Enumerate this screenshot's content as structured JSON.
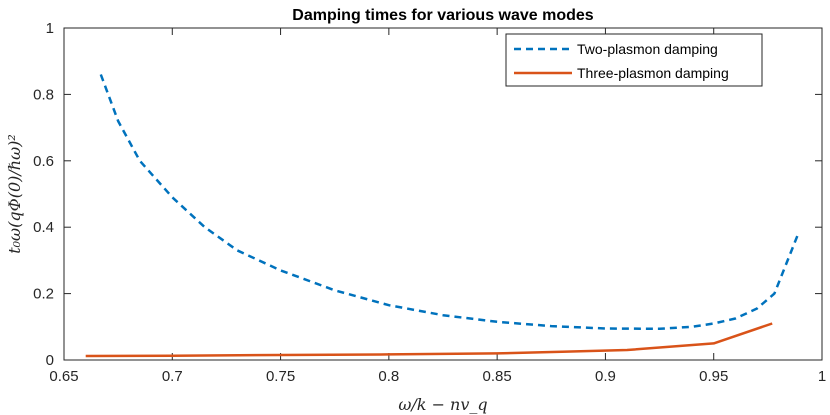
{
  "chart_data": {
    "type": "line",
    "title": "Damping times for various wave modes",
    "xlabel": "ω/k − nv_q",
    "ylabel": "t₀ω(qΦ(0)/ℏω)²",
    "xlim": [
      0.65,
      1
    ],
    "ylim": [
      0,
      1
    ],
    "xticks": [
      0.65,
      0.7,
      0.75,
      0.8,
      0.85,
      0.9,
      0.95,
      1
    ],
    "xtick_labels": [
      "0.65",
      "0.7",
      "0.75",
      "0.8",
      "0.85",
      "0.9",
      "0.95",
      "1"
    ],
    "yticks": [
      0,
      0.2,
      0.4,
      0.6,
      0.8,
      1
    ],
    "ytick_labels": [
      "0",
      "0.2",
      "0.4",
      "0.6",
      "0.8",
      "1"
    ],
    "legend_position": "top-right",
    "series": [
      {
        "name": "Two-plasmon damping",
        "style": "dashed",
        "color": "#0072BD",
        "x": [
          0.667,
          0.675,
          0.685,
          0.7,
          0.715,
          0.73,
          0.75,
          0.775,
          0.8,
          0.825,
          0.85,
          0.875,
          0.9,
          0.925,
          0.94,
          0.95,
          0.96,
          0.97,
          0.978,
          0.989
        ],
        "y": [
          0.86,
          0.72,
          0.6,
          0.49,
          0.4,
          0.33,
          0.27,
          0.21,
          0.165,
          0.135,
          0.115,
          0.102,
          0.095,
          0.094,
          0.1,
          0.11,
          0.125,
          0.155,
          0.2,
          0.38
        ]
      },
      {
        "name": "Three-plasmon damping",
        "style": "solid",
        "color": "#D95319",
        "x": [
          0.66,
          0.7,
          0.75,
          0.8,
          0.85,
          0.88,
          0.91,
          0.95,
          0.977
        ],
        "y": [
          0.012,
          0.013,
          0.015,
          0.017,
          0.02,
          0.025,
          0.03,
          0.05,
          0.11
        ]
      }
    ]
  }
}
